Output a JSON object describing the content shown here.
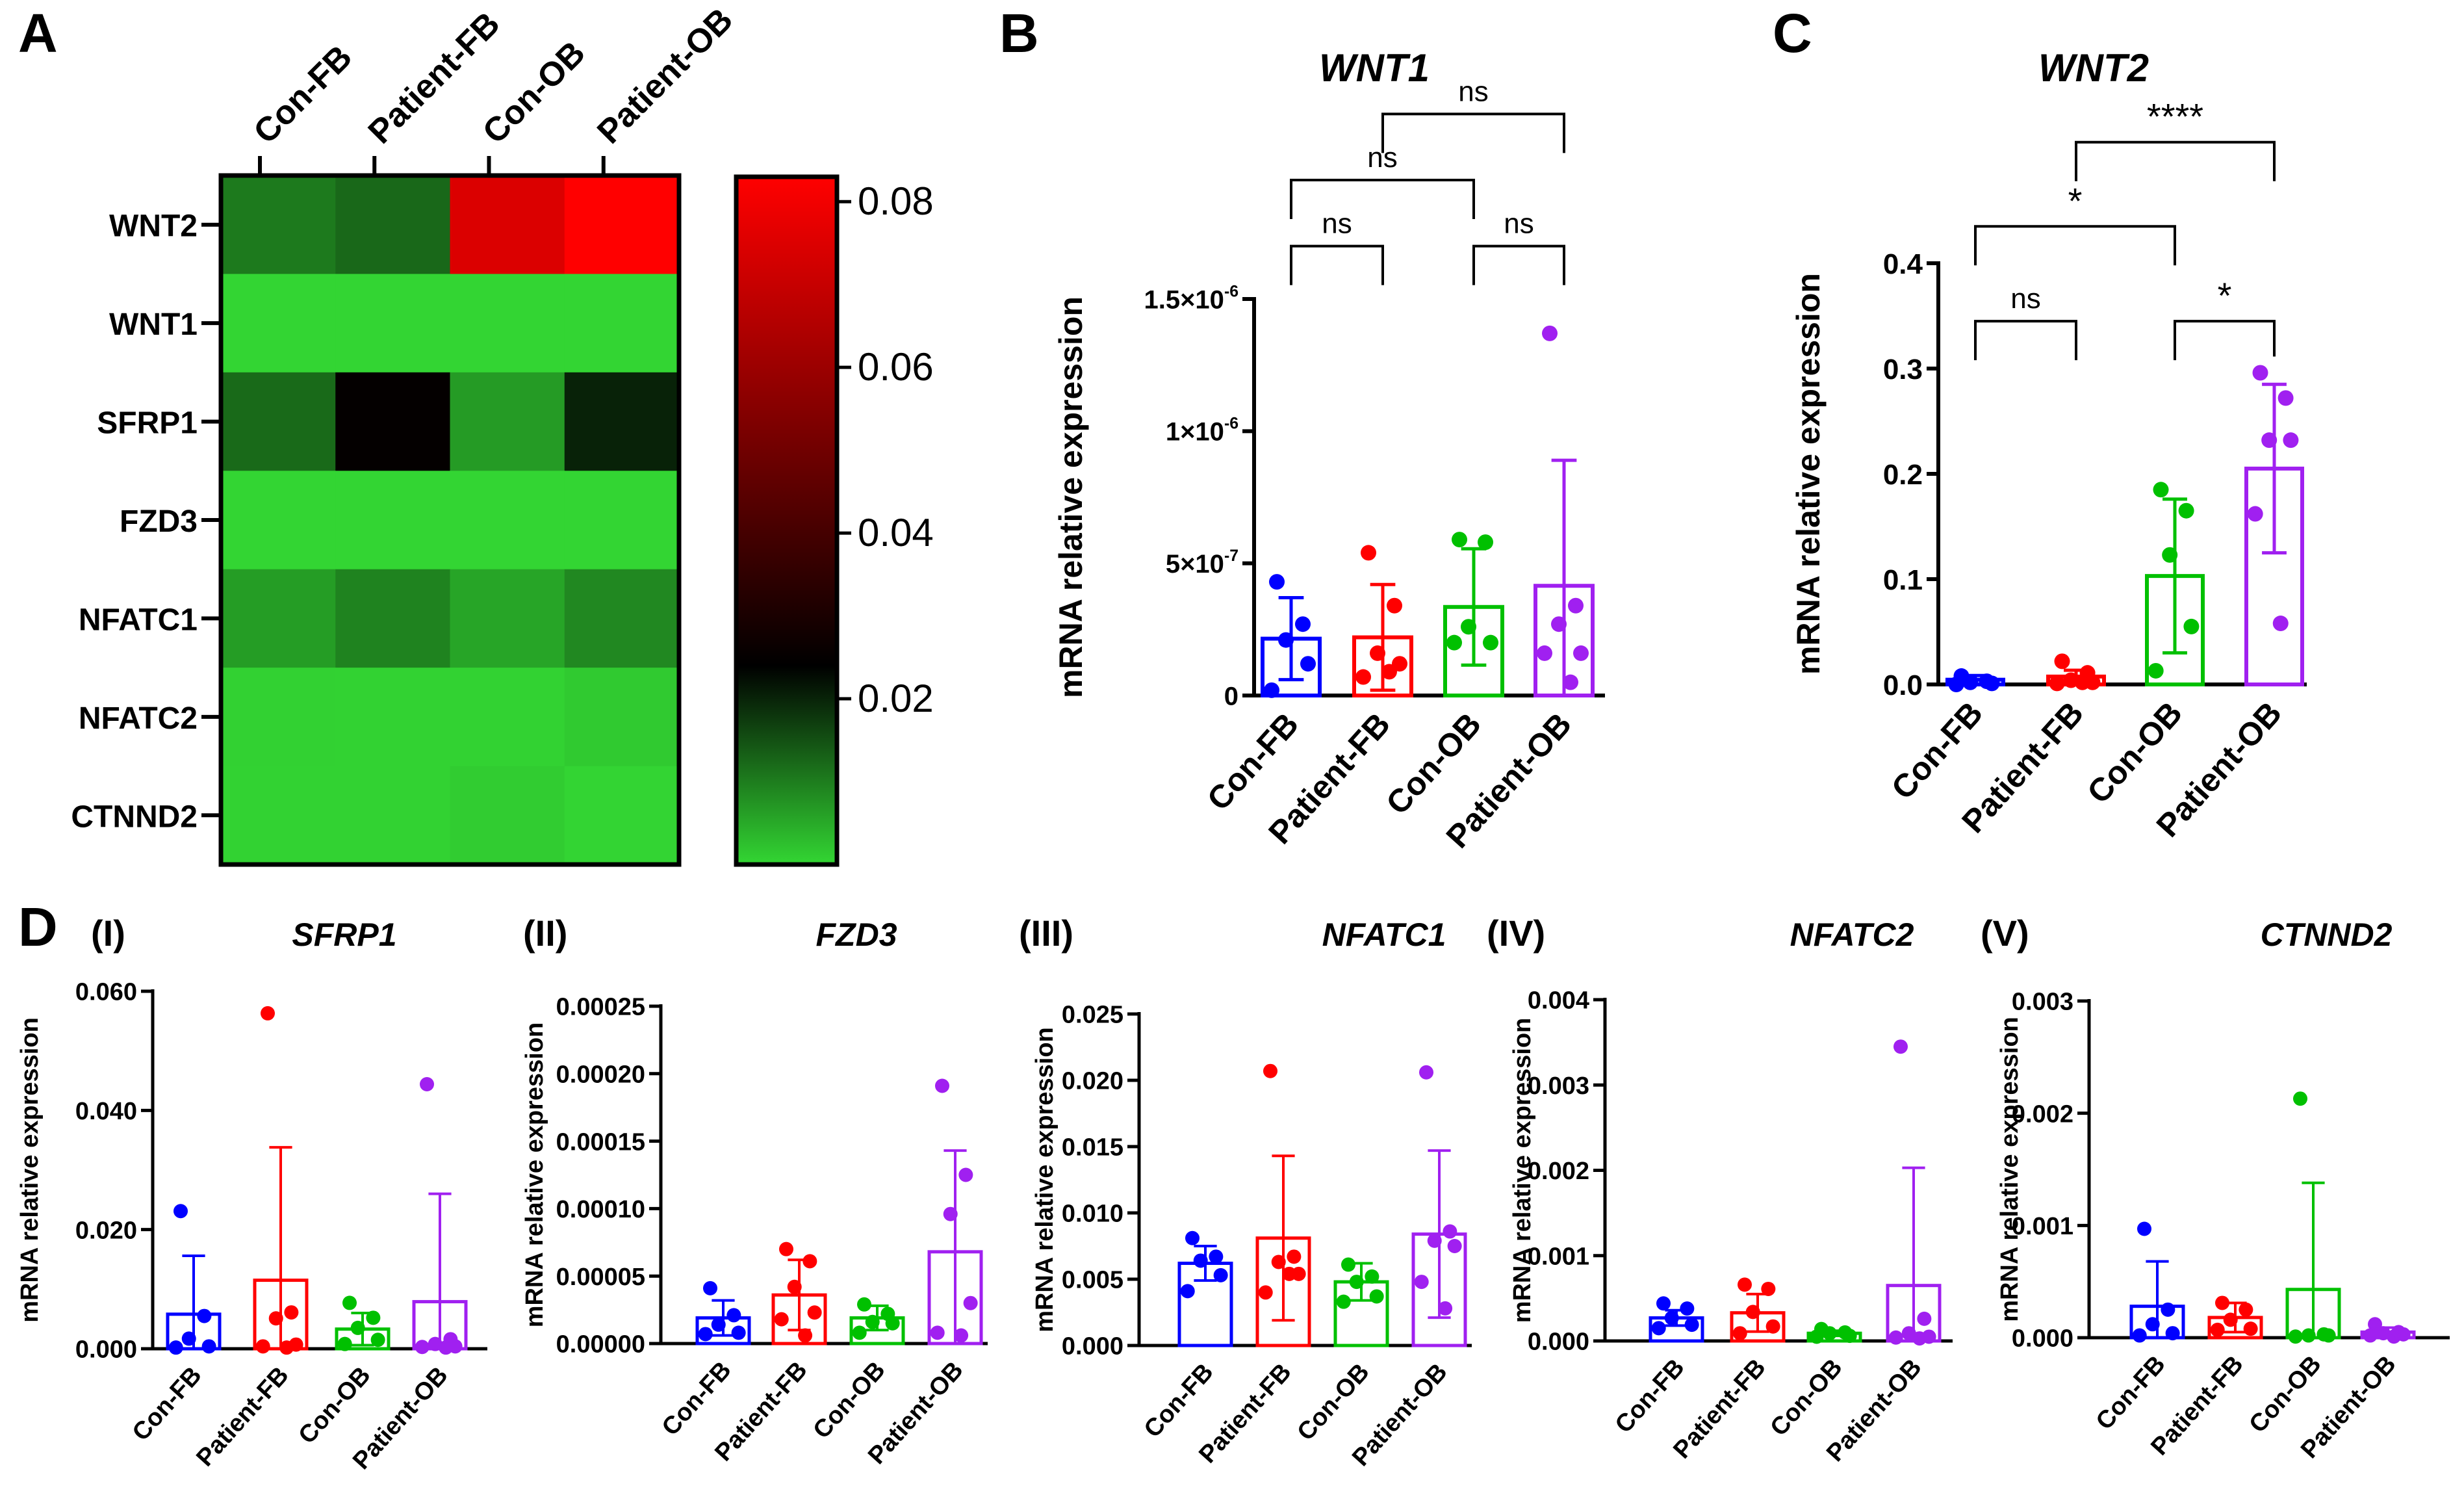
{
  "chart_data": [
    {
      "panel": "A",
      "type": "heatmap",
      "columns": [
        "Con-FB",
        "Patient-FB",
        "Con-OB",
        "Patient-OB"
      ],
      "rows": [
        "WNT2",
        "WNT1",
        "SFRP1",
        "FZD3",
        "NFATC1",
        "NFATC2",
        "CTNND2"
      ],
      "values": [
        [
          0.0103,
          0.0123,
          0.0746,
          0.0831
        ],
        [
          0.0001,
          0.0001,
          0.0001,
          0.0001
        ],
        [
          0.0121,
          0.0249,
          0.0066,
          0.0202
        ],
        [
          0.0001,
          0.0001,
          0.0001,
          0.0001
        ],
        [
          0.0064,
          0.0093,
          0.0055,
          0.0087
        ],
        [
          0.0006,
          0.0005,
          0.0005,
          0.0014
        ],
        [
          0.0005,
          0.0004,
          0.0011,
          0.0002
        ]
      ],
      "colorbar_ticks": [
        "0.08",
        "0.06",
        "0.04",
        "0.02"
      ],
      "colorbar_tick_values": [
        0.08,
        0.06,
        0.04,
        0.02
      ],
      "colorbar_range": [
        0.0,
        0.083
      ],
      "colors": {
        "low": "#33d633",
        "mid": "#000000",
        "high": "#ff0000"
      }
    },
    {
      "panel": "B",
      "type": "bar",
      "title": "WNT1",
      "ylabel": "mRNA relative expression",
      "ylim": [
        0,
        1.5e-06
      ],
      "ytick_values": [
        0,
        5e-07,
        1e-06,
        1.5e-06
      ],
      "ytick_labels": [
        {
          "base": "0",
          "exp": ""
        },
        {
          "base": "5×10",
          "exp": "-7"
        },
        {
          "base": "1×10",
          "exp": "-6"
        },
        {
          "base": "1.5×10",
          "exp": "-6"
        }
      ],
      "categories": [
        "Con-FB",
        "Patient-FB",
        "Con-OB",
        "Patient-OB"
      ],
      "colors": [
        "#0000ff",
        "#ff0000",
        "#00c000",
        "#a020f0"
      ],
      "means": [
        2.15e-07,
        2.2e-07,
        3.35e-07,
        4.15e-07
      ],
      "sd": [
        1.55e-07,
        2e-07,
        2.2e-07,
        4.75e-07
      ],
      "points": [
        [
          4.3e-07,
          2.7e-07,
          2.1e-07,
          1.2e-07,
          2e-08
        ],
        [
          5.4e-07,
          3.4e-07,
          1.6e-07,
          1.2e-07,
          7e-08,
          9e-08
        ],
        [
          5.9e-07,
          5.8e-07,
          2.6e-07,
          2e-07,
          2e-07
        ],
        [
          1.37e-06,
          3.4e-07,
          2.7e-07,
          1.6e-07,
          1.6e-07,
          5e-08
        ]
      ],
      "comparisons": [
        {
          "from": 0,
          "to": 1,
          "label": "ns",
          "y": 1.7e-06
        },
        {
          "from": 2,
          "to": 3,
          "label": "ns",
          "y": 1.7e-06
        },
        {
          "from": 0,
          "to": 2,
          "label": "ns",
          "y": 1.95e-06
        },
        {
          "from": 1,
          "to": 3,
          "label": "ns",
          "y": 2.2e-06
        }
      ]
    },
    {
      "panel": "C",
      "type": "bar",
      "title": "WNT2",
      "ylabel": "mRNA relative expression",
      "ylim": [
        0,
        0.4
      ],
      "ytick_values": [
        0,
        0.1,
        0.2,
        0.3,
        0.4
      ],
      "ytick_labels": [
        {
          "base": "0.0"
        },
        {
          "base": "0.1"
        },
        {
          "base": "0.2"
        },
        {
          "base": "0.3"
        },
        {
          "base": "0.4"
        }
      ],
      "categories": [
        "Con-FB",
        "Patient-FB",
        "Con-OB",
        "Patient-OB"
      ],
      "colors": [
        "#0000ff",
        "#ff0000",
        "#00c000",
        "#a020f0"
      ],
      "means": [
        0.0045,
        0.0075,
        0.103,
        0.205
      ],
      "sd": [
        0.004,
        0.006,
        0.073,
        0.08
      ],
      "points": [
        [
          0.008,
          0.003,
          0.002,
          0.001,
          0.0
        ],
        [
          0.022,
          0.011,
          0.004,
          0.002,
          0.001,
          0.002
        ],
        [
          0.185,
          0.165,
          0.123,
          0.055,
          0.013
        ],
        [
          0.296,
          0.272,
          0.232,
          0.232,
          0.162,
          0.058
        ]
      ],
      "comparisons": [
        {
          "from": 0,
          "to": 1,
          "label": "ns",
          "y": 0.345
        },
        {
          "from": 2,
          "to": 3,
          "label": "*",
          "y": 0.345
        },
        {
          "from": 0,
          "to": 2,
          "label": "*",
          "y": 0.435
        },
        {
          "from": 1,
          "to": 3,
          "label": "****",
          "y": 0.515
        }
      ]
    },
    {
      "panel": "D(I)",
      "type": "bar",
      "title": "SFRP1",
      "ylabel": "mRNA relative expression",
      "ylim": [
        0,
        0.06
      ],
      "ytick_values": [
        0,
        0.02,
        0.04,
        0.06
      ],
      "ytick_labels": [
        {
          "base": "0.000"
        },
        {
          "base": "0.020"
        },
        {
          "base": "0.040"
        },
        {
          "base": "0.060"
        }
      ],
      "categories": [
        "Con-FB",
        "Patient-FB",
        "Con-OB",
        "Patient-OB"
      ],
      "colors": [
        "#0000ff",
        "#ff0000",
        "#00c000",
        "#a020f0"
      ],
      "means": [
        0.0058,
        0.0115,
        0.0033,
        0.0079
      ],
      "sd": [
        0.0098,
        0.0223,
        0.0027,
        0.0181
      ],
      "points": [
        [
          0.0231,
          0.0055,
          0.0017,
          0.0004,
          0.0002
        ],
        [
          0.0563,
          0.0061,
          0.0051,
          0.0007,
          0.0004,
          0.0002
        ],
        [
          0.0077,
          0.0052,
          0.0035,
          0.0015,
          0.0008
        ],
        [
          0.0444,
          0.0016,
          0.0008,
          0.0004,
          0.0003,
          0.0002
        ]
      ]
    },
    {
      "panel": "D(II)",
      "type": "bar",
      "title": "FZD3",
      "ylabel": "mRNA relative expression",
      "ylim": [
        0,
        0.00025
      ],
      "ytick_values": [
        0,
        5e-05,
        0.0001,
        0.00015,
        0.0002,
        0.00025
      ],
      "ytick_labels": [
        {
          "base": "0.00000"
        },
        {
          "base": "0.00005"
        },
        {
          "base": "0.00010"
        },
        {
          "base": "0.00015"
        },
        {
          "base": "0.00020"
        },
        {
          "base": "0.00025"
        }
      ],
      "categories": [
        "Con-FB",
        "Patient-FB",
        "Con-OB",
        "Patient-OB"
      ],
      "colors": [
        "#0000ff",
        "#ff0000",
        "#00c000",
        "#a020f0"
      ],
      "means": [
        1.9e-05,
        3.6e-05,
        1.9e-05,
        6.8e-05
      ],
      "sd": [
        1.3e-05,
        2.6e-05,
        9e-06,
        7.5e-05
      ],
      "points": [
        [
          4.1e-05,
          2.1e-05,
          1.4e-05,
          8e-06,
          7e-06
        ],
        [
          7e-05,
          6.1e-05,
          4.2e-05,
          2.3e-05,
          1.8e-05,
          6e-06
        ],
        [
          2.9e-05,
          2.2e-05,
          1.6e-05,
          1.5e-05,
          8e-06
        ],
        [
          0.000191,
          0.000125,
          9.6e-05,
          3e-05,
          8e-06,
          6e-06
        ]
      ]
    },
    {
      "panel": "D(III)",
      "type": "bar",
      "title": "NFATC1",
      "ylabel": "mRNA relative expression",
      "ylim": [
        0,
        0.025
      ],
      "ytick_values": [
        0,
        0.005,
        0.01,
        0.015,
        0.02,
        0.025
      ],
      "ytick_labels": [
        {
          "base": "0.000"
        },
        {
          "base": "0.005"
        },
        {
          "base": "0.010"
        },
        {
          "base": "0.015"
        },
        {
          "base": "0.020"
        },
        {
          "base": "0.025"
        }
      ],
      "categories": [
        "Con-FB",
        "Patient-FB",
        "Con-OB",
        "Patient-OB"
      ],
      "colors": [
        "#0000ff",
        "#ff0000",
        "#00c000",
        "#a020f0"
      ],
      "means": [
        0.0062,
        0.0081,
        0.0048,
        0.0084
      ],
      "sd": [
        0.0013,
        0.0062,
        0.0014,
        0.0063
      ],
      "points": [
        [
          0.0081,
          0.0067,
          0.0064,
          0.0053,
          0.0041
        ],
        [
          0.0207,
          0.0067,
          0.0063,
          0.0054,
          0.004,
          0.0054
        ],
        [
          0.0061,
          0.0052,
          0.0048,
          0.0037,
          0.0033
        ],
        [
          0.0206,
          0.0086,
          0.0079,
          0.0075,
          0.0048,
          0.0028
        ]
      ]
    },
    {
      "panel": "D(IV)",
      "type": "bar",
      "title": "NFATC2",
      "ylabel": "mRNA relative expression",
      "ylim": [
        0,
        0.004
      ],
      "ytick_values": [
        0,
        0.001,
        0.002,
        0.003,
        0.004
      ],
      "ytick_labels": [
        {
          "base": "0.000"
        },
        {
          "base": "0.001"
        },
        {
          "base": "0.002"
        },
        {
          "base": "0.003"
        },
        {
          "base": "0.004"
        }
      ],
      "categories": [
        "Con-FB",
        "Patient-FB",
        "Con-OB",
        "Patient-OB"
      ],
      "colors": [
        "#0000ff",
        "#ff0000",
        "#00c000",
        "#a020f0"
      ],
      "means": [
        0.00027,
        0.00033,
        9e-05,
        0.00065
      ],
      "sd": [
        9e-05,
        0.00022,
        3e-05,
        0.00138
      ],
      "points": [
        [
          0.00044,
          0.00038,
          0.00027,
          0.00019,
          0.00015
        ],
        [
          0.00066,
          0.00061,
          0.00034,
          0.00017,
          9e-05
        ],
        [
          0.00014,
          0.0001,
          9e-05,
          6e-05,
          5e-05
        ],
        [
          0.00345,
          0.00026,
          9e-05,
          5e-05,
          4e-05,
          3e-05
        ]
      ]
    },
    {
      "panel": "D(V)",
      "type": "bar",
      "title": "CTNND2",
      "ylabel": "mRNA relative expression",
      "ylim": [
        0,
        0.003
      ],
      "ytick_values": [
        0,
        0.001,
        0.002,
        0.003
      ],
      "ytick_labels": [
        {
          "base": "0.000"
        },
        {
          "base": "0.001"
        },
        {
          "base": "0.002"
        },
        {
          "base": "0.003"
        }
      ],
      "categories": [
        "Con-FB",
        "Patient-FB",
        "Con-OB",
        "Patient-OB"
      ],
      "colors": [
        "#0000ff",
        "#ff0000",
        "#00c000",
        "#a020f0"
      ],
      "means": [
        0.00028,
        0.00018,
        0.00043,
        5e-05
      ],
      "sd": [
        0.0004,
        0.00013,
        0.00095,
        4e-05
      ],
      "points": [
        [
          0.00097,
          0.00025,
          0.00012,
          4e-05,
          2e-05
        ],
        [
          0.00031,
          0.00025,
          0.00016,
          8e-05,
          7e-05
        ],
        [
          0.00213,
          3e-05,
          2e-05,
          2e-05,
          1e-05
        ],
        [
          0.00012,
          5e-05,
          4e-05,
          3e-05,
          2e-05,
          1e-05
        ]
      ]
    }
  ],
  "panel_labels": {
    "A": "A",
    "B": "B",
    "C": "C",
    "D": "D"
  },
  "sub_labels": [
    "(I)",
    "(II)",
    "(III)",
    "(IV)",
    "(V)"
  ]
}
